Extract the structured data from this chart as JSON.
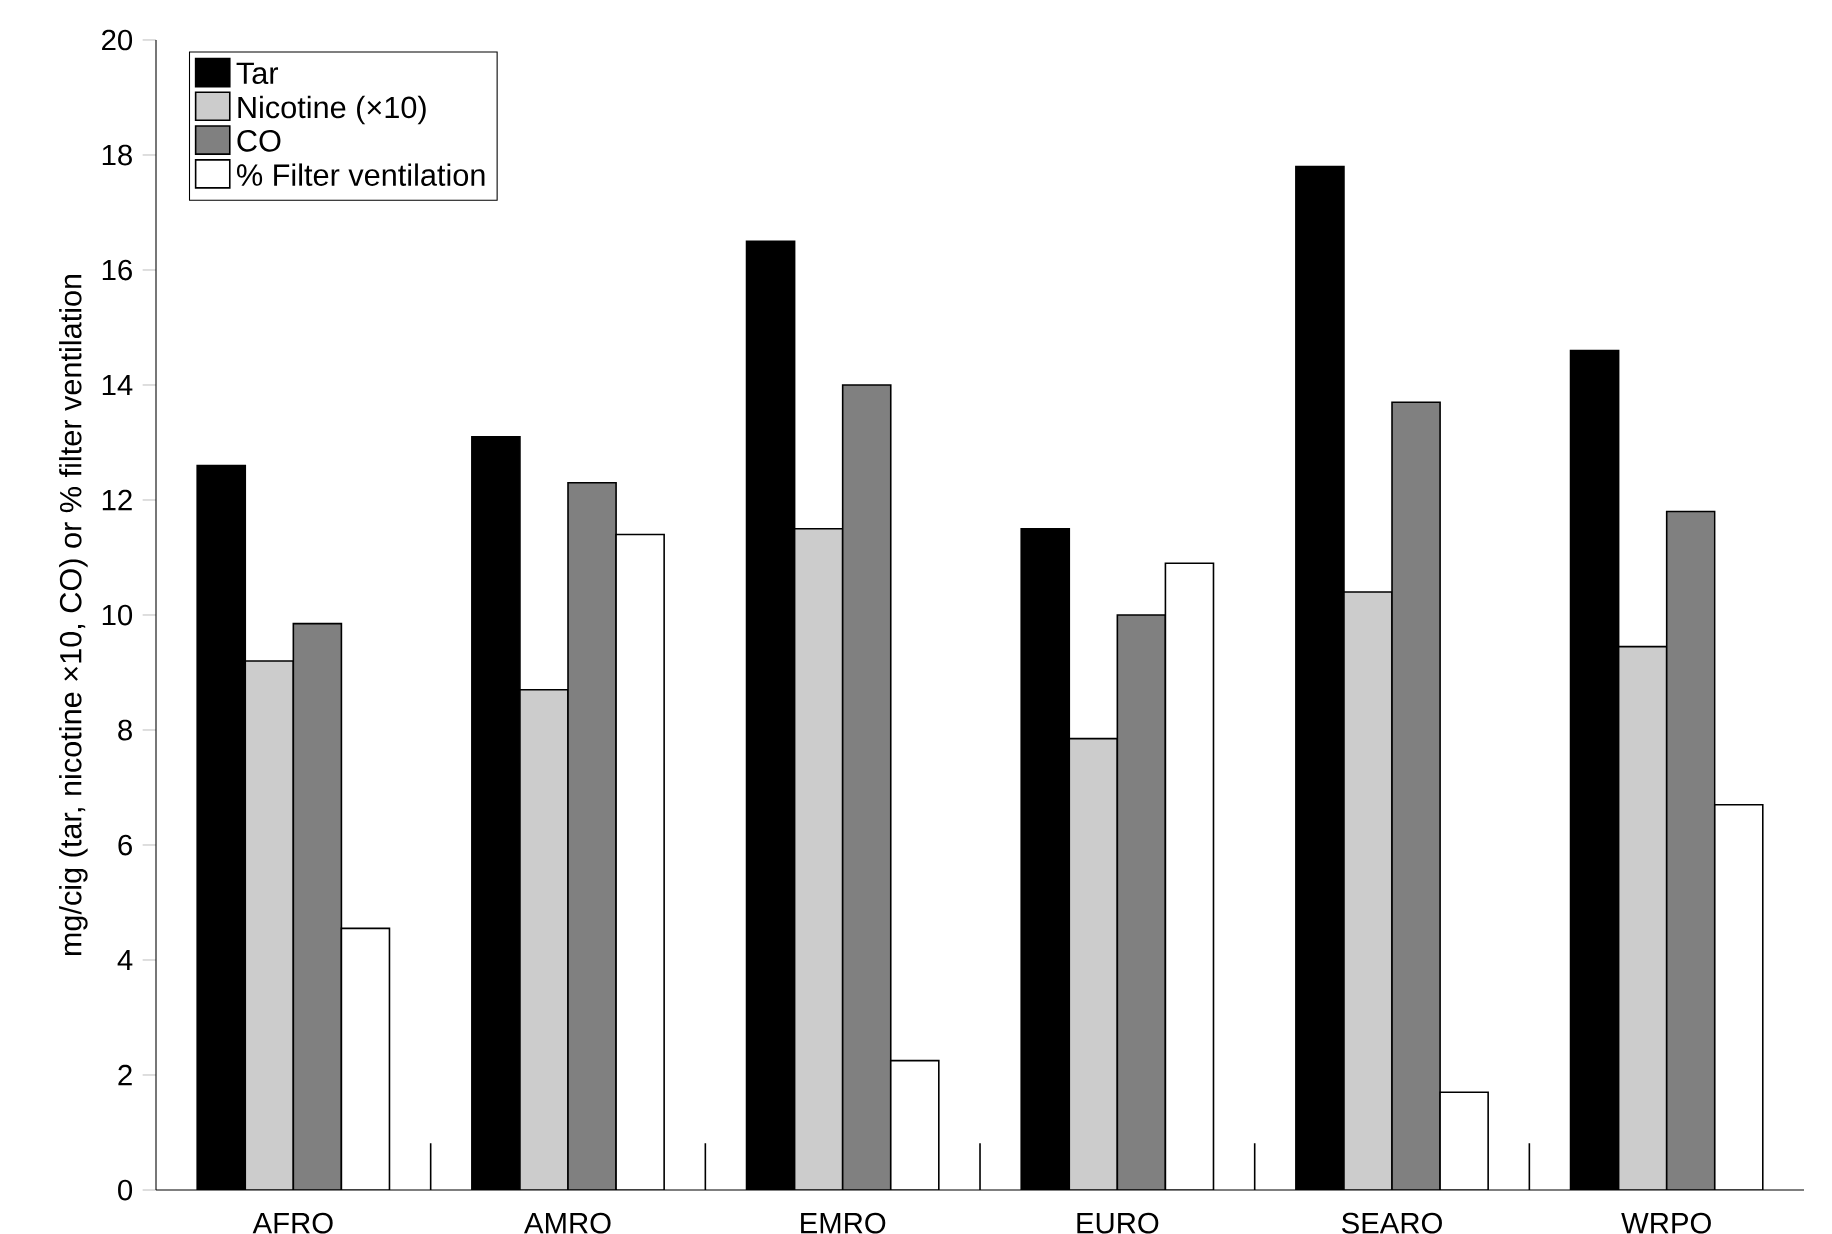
{
  "chart_data": {
    "type": "bar",
    "ylabel": "mg/cig (tar, nicotine ×10, CO) or % filter ventilation",
    "categories": [
      "AFRO",
      "AMRO",
      "EMRO",
      "EURO",
      "SEARO",
      "WRPO"
    ],
    "series": [
      {
        "name": "Tar",
        "color": "#000000",
        "values": [
          12.6,
          13.1,
          16.5,
          11.5,
          17.8,
          14.6
        ]
      },
      {
        "name": "Nicotine (×10)",
        "color": "#cccccc",
        "values": [
          9.2,
          8.7,
          11.5,
          7.85,
          10.4,
          9.45
        ]
      },
      {
        "name": "CO",
        "color": "#808080",
        "values": [
          9.85,
          12.3,
          14.0,
          10.0,
          13.7,
          11.8
        ]
      },
      {
        "name": "% Filter ventilation",
        "color": "#ffffff",
        "values": [
          4.55,
          11.4,
          2.25,
          10.9,
          1.7,
          6.7
        ]
      }
    ],
    "ylim": [
      0,
      20
    ],
    "yticks": [
      0,
      2,
      4,
      6,
      8,
      10,
      12,
      14,
      16,
      18,
      20
    ],
    "grid": false,
    "legend": "top left"
  }
}
